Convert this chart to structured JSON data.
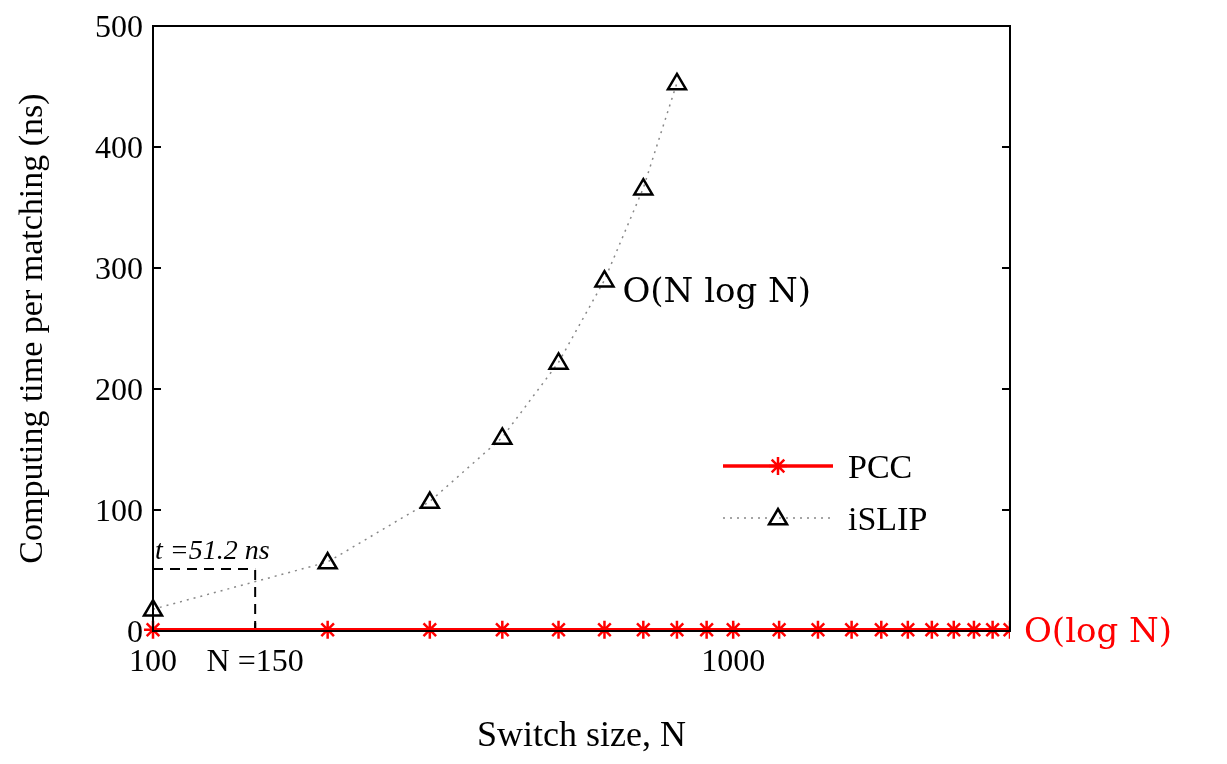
{
  "chart_data": {
    "type": "line",
    "xlabel": "Switch size, N",
    "ylabel": "Computing time per matching (ns)",
    "log": "x",
    "xlim": [
      100,
      3000
    ],
    "xticks": [
      100,
      {
        "value": 150,
        "label": "N =150"
      },
      1000
    ],
    "ylim": [
      0,
      500
    ],
    "yticks": [
      0,
      100,
      200,
      300,
      400,
      500
    ],
    "legend": "bottom right",
    "series": [
      {
        "name": "PCC",
        "color": "#ff0000",
        "marker": "cross",
        "line_style": "solid",
        "x": [
          100,
          200,
          300,
          400,
          500,
          600,
          700,
          800,
          900,
          1000,
          1200,
          1400,
          1600,
          1800,
          2000,
          2200,
          2400,
          2600,
          2800,
          3000
        ],
        "values": [
          1,
          1,
          1,
          1,
          1,
          1,
          1,
          1,
          1,
          1,
          1,
          1,
          1,
          1,
          1,
          1,
          1,
          1,
          1,
          1
        ]
      },
      {
        "name": "iSLIP",
        "color": "#000000",
        "marker": "triangle",
        "line_style": "dotted",
        "x": [
          100,
          200,
          300,
          400,
          500,
          600,
          700,
          800
        ],
        "values": [
          18,
          57,
          107,
          160,
          222,
          290,
          366,
          453
        ]
      }
    ],
    "ref_lines": [
      {
        "axis": "x",
        "value": 150,
        "line_style": "dashed",
        "color": "#000000"
      },
      {
        "axis": "y",
        "value": 51.2,
        "line_style": "dashed",
        "color": "#000000"
      }
    ],
    "annotations": [
      {
        "text": "t =51.2 ns",
        "x": 150,
        "y": 51.2
      },
      {
        "text": "O(N log N)",
        "x": 600,
        "y": 290
      },
      {
        "text": "O(log N)",
        "x": 3000,
        "y": 1
      }
    ]
  }
}
